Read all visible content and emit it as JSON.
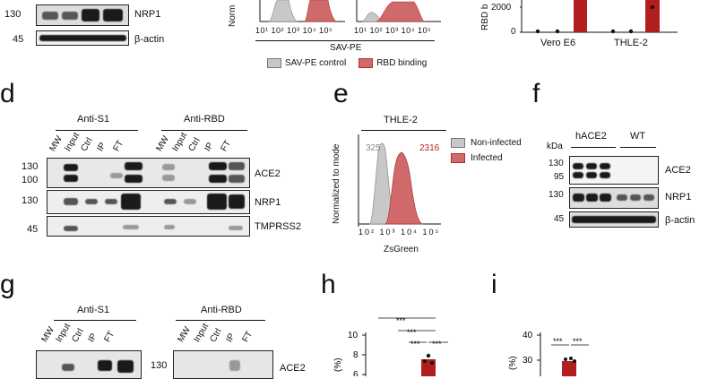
{
  "panels": {
    "letters": [
      "d",
      "e",
      "f",
      "g",
      "h",
      "i"
    ],
    "top_left": {
      "mw_130": "130",
      "mw_45": "45",
      "label_nrp1": "NRP1",
      "label_actin": "β-actin"
    },
    "top_mid": {
      "ylabel_fragment": "Norm",
      "xlabel": "SAV-PE",
      "ticks": [
        "10¹",
        "10²",
        "10³",
        "10⁴",
        "10⁵"
      ],
      "legend": [
        {
          "name": "SAV-PE control",
          "color": "#c8c8c8"
        },
        {
          "name": "RBD binding",
          "color": "#d06a6a"
        }
      ]
    },
    "top_right": {
      "ylabel_fragment": "RBD b",
      "ytick_2000": "2000",
      "ytick_0": "0",
      "categories": [
        "Vero E6",
        "THLE-2"
      ],
      "bar_color": "#b01e1e"
    },
    "d": {
      "groups": [
        "Anti-S1",
        "Anti-RBD"
      ],
      "lanes": [
        "MW",
        "Input",
        "Ctrl",
        "IP",
        "FT",
        "MW",
        "Input",
        "Ctrl",
        "IP",
        "FT"
      ],
      "mw": [
        "130",
        "100",
        "130",
        "45"
      ],
      "targets": [
        "ACE2",
        "NRP1",
        "TMPRSS2"
      ]
    },
    "e": {
      "title": "THLE-2",
      "ylabel": "Normalized to mode",
      "xlabel": "ZsGreen",
      "ticks": [
        "10²",
        "10³",
        "10⁴",
        "10⁵"
      ],
      "mfi_noninfected": "325",
      "mfi_infected": "2316",
      "legend": [
        {
          "name": "Non-infected",
          "color": "#c8c8c8"
        },
        {
          "name": "Infected",
          "color": "#d06a6a"
        }
      ]
    },
    "f": {
      "kda": "kDa",
      "groups": [
        "hACE2",
        "WT"
      ],
      "mw": [
        "130",
        "95",
        "130",
        "45"
      ],
      "targets": [
        "ACE2",
        "NRP1",
        "β-actin"
      ]
    },
    "g": {
      "groups": [
        "Anti-S1",
        "Anti-RBD"
      ],
      "lanes": [
        "MW",
        "Input",
        "Ctrl",
        "IP",
        "FT",
        "MW",
        "Input",
        "Ctrl",
        "IP",
        "FT"
      ],
      "mw_130": "130",
      "target": "ACE2"
    },
    "h": {
      "sig": [
        "***",
        "***",
        "***",
        "***"
      ],
      "yticks": [
        "10",
        "8",
        "6"
      ],
      "ylabel_fragment": "(%)"
    },
    "i": {
      "sig": [
        "***",
        "***"
      ],
      "yticks": [
        "40",
        "30"
      ],
      "ylabel_fragment": "(%)"
    }
  }
}
